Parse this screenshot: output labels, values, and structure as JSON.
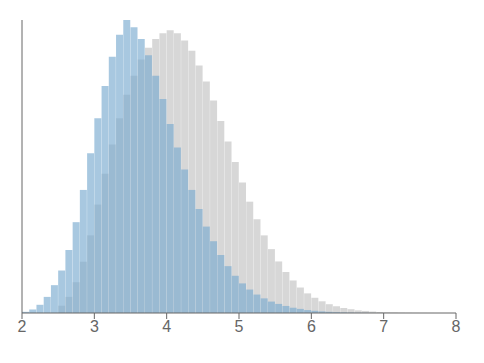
{
  "chart_data": {
    "type": "bar",
    "x": [
      2.05,
      2.15,
      2.25,
      2.35,
      2.45,
      2.55,
      2.65,
      2.75,
      2.85,
      2.95,
      3.05,
      3.15,
      3.25,
      3.35,
      3.45,
      3.55,
      3.65,
      3.75,
      3.85,
      3.95,
      4.05,
      4.15,
      4.25,
      4.35,
      4.45,
      4.55,
      4.65,
      4.75,
      4.85,
      4.95,
      5.05,
      5.15,
      5.25,
      5.35,
      5.45,
      5.55,
      5.65,
      5.75,
      5.85,
      5.95,
      6.05,
      6.15,
      6.25,
      6.35,
      6.45,
      6.55,
      6.65,
      6.75,
      6.85,
      6.95,
      7.05,
      7.15,
      7.25,
      7.35,
      7.45,
      7.55,
      7.65,
      7.75,
      7.85,
      7.95
    ],
    "series": [
      {
        "color": "#d0d0d0",
        "values": [
          null,
          null,
          null,
          null,
          null,
          0.025,
          0.055,
          0.105,
          0.175,
          0.265,
          0.37,
          0.475,
          0.575,
          0.665,
          0.745,
          0.81,
          0.865,
          0.905,
          0.935,
          0.955,
          0.965,
          0.955,
          0.93,
          0.895,
          0.845,
          0.79,
          0.725,
          0.655,
          0.585,
          0.515,
          0.445,
          0.38,
          0.32,
          0.265,
          0.218,
          0.176,
          0.14,
          0.111,
          0.087,
          0.067,
          0.052,
          0.04,
          0.03,
          0.023,
          0.017,
          0.013,
          0.009,
          0.007,
          0.005,
          0.0035,
          0.0025,
          0.0018,
          0.0012,
          0.0008,
          0.0005,
          0.0003,
          0.0002,
          0.0001,
          0.0001,
          5e-05
        ]
      },
      {
        "color": "#7aaad0",
        "values": [
          0.004,
          0.012,
          0.028,
          0.055,
          0.095,
          0.145,
          0.215,
          0.31,
          0.42,
          0.545,
          0.665,
          0.775,
          0.875,
          0.95,
          1.0,
          0.975,
          0.935,
          0.88,
          0.81,
          0.73,
          0.645,
          0.565,
          0.49,
          0.42,
          0.355,
          0.295,
          0.245,
          0.198,
          0.16,
          0.127,
          0.101,
          0.08,
          0.063,
          0.05,
          0.039,
          0.031,
          0.024,
          0.018,
          0.014,
          0.01,
          0.0075,
          0.0055,
          0.004,
          0.003,
          0.002,
          0.0014,
          0.001,
          0.0007,
          0.0004,
          0.0002,
          null,
          null,
          null,
          null,
          null,
          null,
          null,
          null,
          null,
          null
        ]
      }
    ],
    "xlim": [
      2,
      8
    ],
    "xticks": [
      2,
      3,
      4,
      5,
      6,
      7,
      8
    ],
    "ylim": [
      0,
      1.0
    ],
    "grid": false,
    "tick_labels": "x"
  }
}
